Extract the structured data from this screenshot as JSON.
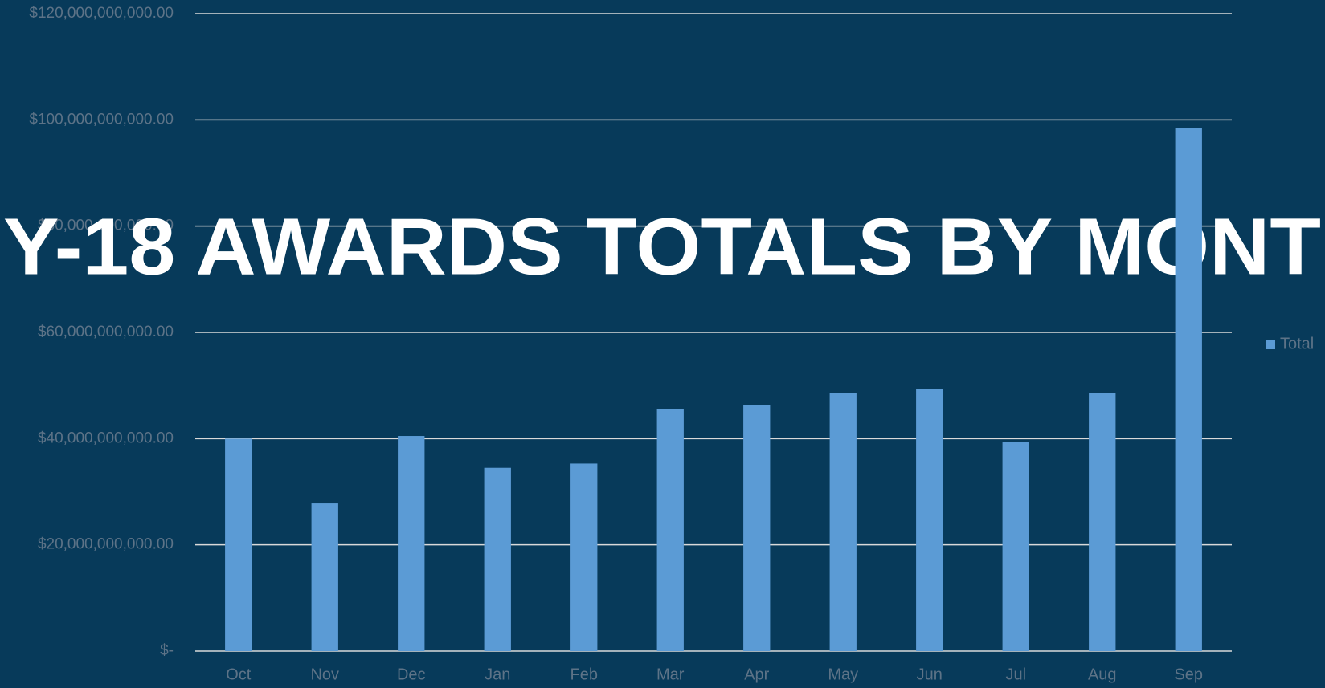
{
  "chart_data": {
    "type": "bar",
    "title": "Y-18 AWARDS TOTALS BY MONT",
    "categories": [
      "Oct",
      "Nov",
      "Dec",
      "Jan",
      "Feb",
      "Mar",
      "Apr",
      "May",
      "Jun",
      "Jul",
      "Aug",
      "Sep"
    ],
    "series": [
      {
        "name": "Total",
        "color": "#5b9bd5",
        "values": [
          40000000000,
          27800000000,
          40500000000,
          34500000000,
          35300000000,
          45600000000,
          46300000000,
          48600000000,
          49300000000,
          39400000000,
          48600000000,
          98400000000
        ]
      }
    ],
    "ylim": [
      0,
      120000000000
    ],
    "yticks": [
      {
        "value": 0,
        "label": "$-"
      },
      {
        "value": 20000000000,
        "label": "$20,000,000,000.00"
      },
      {
        "value": 40000000000,
        "label": "$40,000,000,000.00"
      },
      {
        "value": 60000000000,
        "label": "$60,000,000,000.00"
      },
      {
        "value": 80000000000,
        "label": "$80,000,000,000.00"
      },
      {
        "value": 100000000000,
        "label": "$100,000,000,000.00"
      },
      {
        "value": 120000000000,
        "label": "$120,000,000,000.00"
      }
    ],
    "grid": true,
    "legend": "right"
  }
}
